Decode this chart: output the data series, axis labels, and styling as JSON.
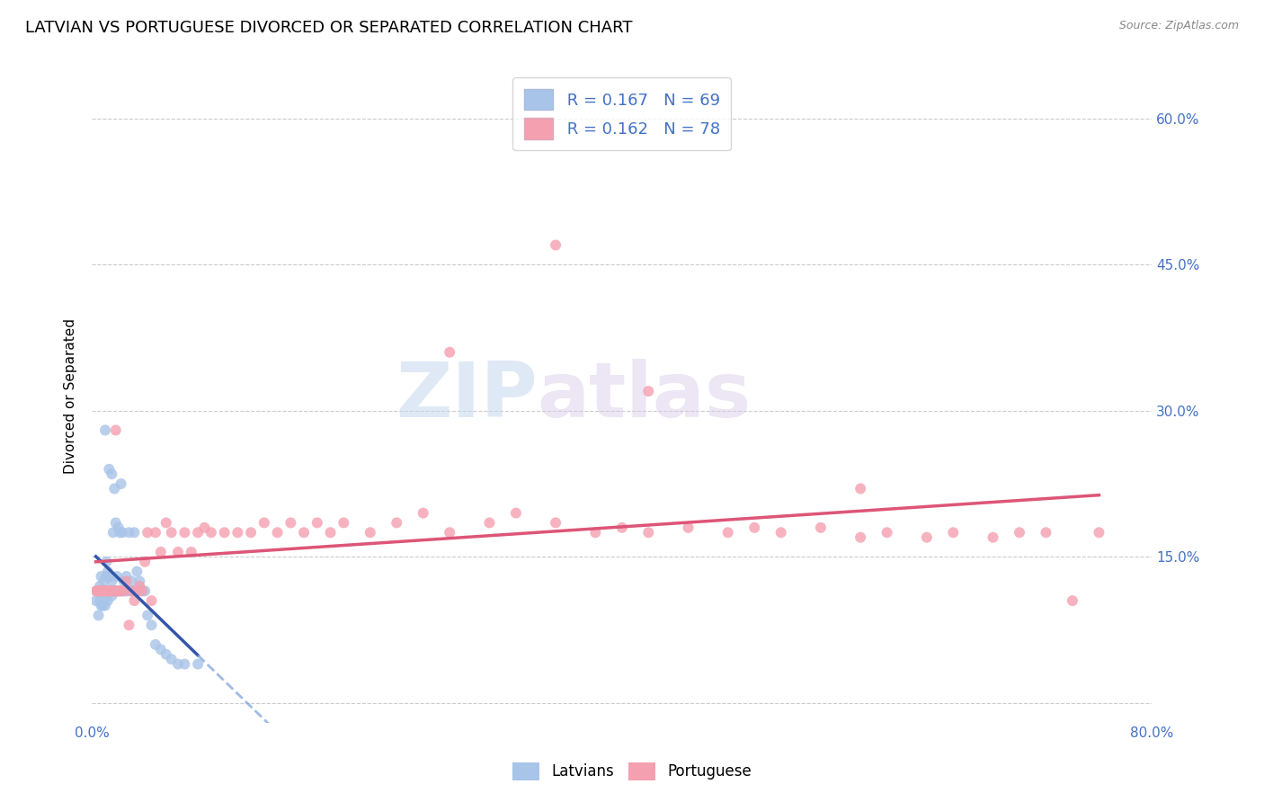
{
  "title": "LATVIAN VS PORTUGUESE DIVORCED OR SEPARATED CORRELATION CHART",
  "source": "Source: ZipAtlas.com",
  "ylabel": "Divorced or Separated",
  "xlim": [
    0.0,
    0.8
  ],
  "ylim": [
    -0.02,
    0.65
  ],
  "latvian_color": "#A8C4E8",
  "portuguese_color": "#F4A0B0",
  "trendline_latvian_solid_color": "#3355AA",
  "trendline_latvian_dash_color": "#88AADE",
  "trendline_portuguese_color": "#DD5577",
  "watermark_zip": "ZIP",
  "watermark_atlas": "atlas",
  "legend_R_latvian": "0.167",
  "legend_N_latvian": "69",
  "legend_R_portuguese": "0.162",
  "legend_N_portuguese": "78",
  "latvian_x": [
    0.003,
    0.004,
    0.005,
    0.006,
    0.006,
    0.007,
    0.007,
    0.007,
    0.008,
    0.008,
    0.009,
    0.009,
    0.01,
    0.01,
    0.01,
    0.011,
    0.011,
    0.011,
    0.012,
    0.012,
    0.012,
    0.013,
    0.013,
    0.013,
    0.014,
    0.014,
    0.015,
    0.015,
    0.015,
    0.016,
    0.016,
    0.017,
    0.017,
    0.018,
    0.018,
    0.019,
    0.019,
    0.02,
    0.02,
    0.021,
    0.021,
    0.022,
    0.022,
    0.023,
    0.023,
    0.024,
    0.025,
    0.026,
    0.027,
    0.028,
    0.029,
    0.03,
    0.031,
    0.032,
    0.033,
    0.034,
    0.035,
    0.036,
    0.038,
    0.04,
    0.042,
    0.045,
    0.048,
    0.052,
    0.056,
    0.06,
    0.065,
    0.07,
    0.08
  ],
  "latvian_y": [
    0.105,
    0.115,
    0.09,
    0.105,
    0.12,
    0.1,
    0.115,
    0.13,
    0.1,
    0.115,
    0.105,
    0.125,
    0.1,
    0.115,
    0.28,
    0.115,
    0.13,
    0.145,
    0.105,
    0.115,
    0.135,
    0.115,
    0.13,
    0.24,
    0.115,
    0.13,
    0.11,
    0.125,
    0.235,
    0.115,
    0.175,
    0.115,
    0.22,
    0.115,
    0.185,
    0.115,
    0.13,
    0.115,
    0.18,
    0.115,
    0.175,
    0.115,
    0.225,
    0.115,
    0.175,
    0.125,
    0.115,
    0.13,
    0.115,
    0.175,
    0.115,
    0.125,
    0.115,
    0.175,
    0.115,
    0.135,
    0.115,
    0.125,
    0.115,
    0.115,
    0.09,
    0.08,
    0.06,
    0.055,
    0.05,
    0.045,
    0.04,
    0.04,
    0.04
  ],
  "portuguese_x": [
    0.003,
    0.004,
    0.005,
    0.006,
    0.007,
    0.008,
    0.009,
    0.01,
    0.011,
    0.012,
    0.013,
    0.014,
    0.015,
    0.016,
    0.017,
    0.018,
    0.019,
    0.02,
    0.022,
    0.024,
    0.026,
    0.028,
    0.03,
    0.032,
    0.034,
    0.036,
    0.038,
    0.04,
    0.042,
    0.045,
    0.048,
    0.052,
    0.056,
    0.06,
    0.065,
    0.07,
    0.075,
    0.08,
    0.085,
    0.09,
    0.1,
    0.11,
    0.12,
    0.13,
    0.14,
    0.15,
    0.16,
    0.17,
    0.18,
    0.19,
    0.21,
    0.23,
    0.25,
    0.27,
    0.3,
    0.32,
    0.35,
    0.38,
    0.4,
    0.42,
    0.45,
    0.48,
    0.5,
    0.52,
    0.55,
    0.58,
    0.6,
    0.63,
    0.65,
    0.68,
    0.7,
    0.72,
    0.74,
    0.76,
    0.35,
    0.27,
    0.42,
    0.58
  ],
  "portuguese_y": [
    0.115,
    0.115,
    0.115,
    0.115,
    0.115,
    0.115,
    0.115,
    0.115,
    0.115,
    0.115,
    0.115,
    0.115,
    0.115,
    0.115,
    0.115,
    0.28,
    0.115,
    0.115,
    0.115,
    0.115,
    0.125,
    0.08,
    0.115,
    0.105,
    0.115,
    0.12,
    0.115,
    0.145,
    0.175,
    0.105,
    0.175,
    0.155,
    0.185,
    0.175,
    0.155,
    0.175,
    0.155,
    0.175,
    0.18,
    0.175,
    0.175,
    0.175,
    0.175,
    0.185,
    0.175,
    0.185,
    0.175,
    0.185,
    0.175,
    0.185,
    0.175,
    0.185,
    0.195,
    0.175,
    0.185,
    0.195,
    0.185,
    0.175,
    0.18,
    0.175,
    0.18,
    0.175,
    0.18,
    0.175,
    0.18,
    0.17,
    0.175,
    0.17,
    0.175,
    0.17,
    0.175,
    0.175,
    0.105,
    0.175,
    0.47,
    0.36,
    0.32,
    0.22
  ],
  "grid_color": "#CCCCCC",
  "background_color": "#FFFFFF",
  "tick_color": "#4472C4",
  "title_fontsize": 13,
  "axis_label_fontsize": 11,
  "x_tick_positions": [
    0.0,
    0.1,
    0.2,
    0.3,
    0.4,
    0.5,
    0.6,
    0.7,
    0.8
  ],
  "x_tick_labels": [
    "0.0%",
    "",
    "",
    "",
    "",
    "",
    "",
    "",
    "80.0%"
  ],
  "y_tick_positions": [
    0.0,
    0.15,
    0.3,
    0.45,
    0.6
  ],
  "y_tick_labels": [
    "",
    "15.0%",
    "30.0%",
    "45.0%",
    "60.0%"
  ]
}
